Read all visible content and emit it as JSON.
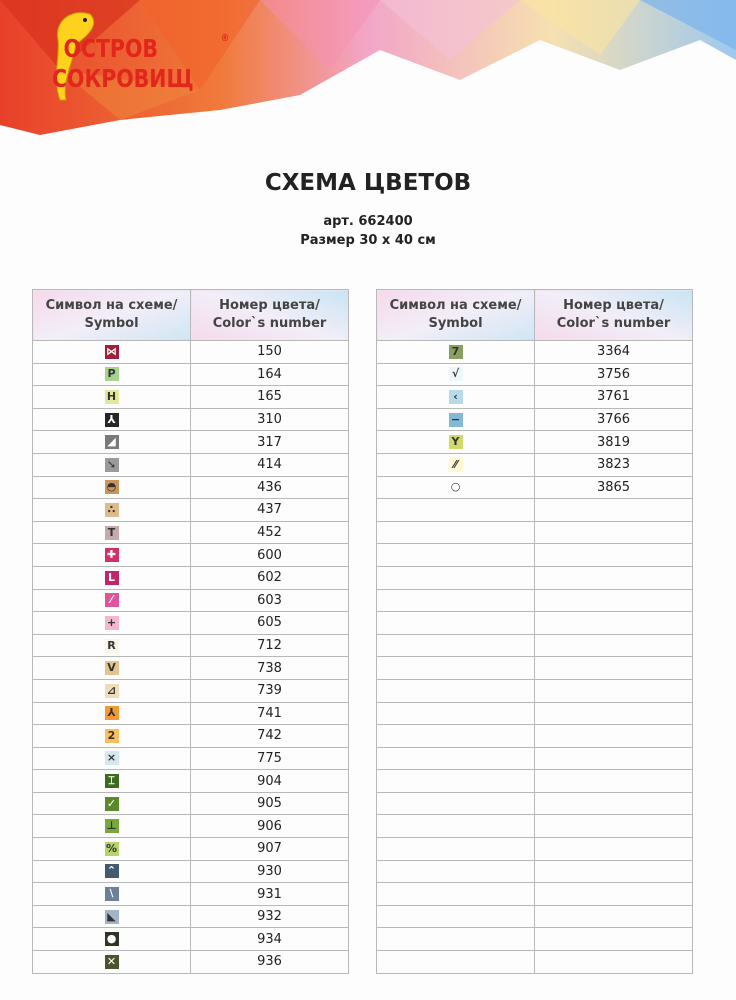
{
  "logo": {
    "line1": "ОСТРОВ",
    "line2": "СОКРОВИЩ",
    "mark": "®"
  },
  "title": "СХЕМА ЦВЕТОВ",
  "article": "арт. 662400",
  "size": "Размер 30 х 40 см",
  "tables": [
    {
      "header": [
        "Символ на схеме/\nSymbol",
        "Номер цвета/\nColor`s number"
      ],
      "rows": [
        {
          "symbol": "⋈",
          "color": "#a0203a",
          "number": "150"
        },
        {
          "symbol": "P",
          "color": "#a6d48e",
          "number": "164"
        },
        {
          "symbol": "H",
          "color": "#e2e79c",
          "number": "165"
        },
        {
          "symbol": "⅄",
          "color": "#262626",
          "number": "310"
        },
        {
          "symbol": "◢",
          "color": "#7a7a7a",
          "number": "317"
        },
        {
          "symbol": "➘",
          "color": "#9a9a9a",
          "number": "414"
        },
        {
          "symbol": "◓",
          "color": "#c8955c",
          "number": "436"
        },
        {
          "symbol": "∴",
          "color": "#dcbb8c",
          "number": "437"
        },
        {
          "symbol": "T",
          "color": "#c3abab",
          "number": "452"
        },
        {
          "symbol": "✚",
          "color": "#d3306a",
          "number": "600"
        },
        {
          "symbol": "L",
          "color": "#c4246a",
          "number": "602"
        },
        {
          "symbol": "⁄",
          "color": "#e0559a",
          "number": "603"
        },
        {
          "symbol": "+",
          "color": "#f4b6d0",
          "number": "605"
        },
        {
          "symbol": "R",
          "color": "#faf5e6",
          "number": "712"
        },
        {
          "symbol": "V",
          "color": "#e2c48f",
          "number": "738"
        },
        {
          "symbol": "⊿",
          "color": "#efdcb8",
          "number": "739"
        },
        {
          "symbol": "⅄",
          "color": "#f39a35",
          "number": "741"
        },
        {
          "symbol": "2",
          "color": "#fbbe5c",
          "number": "742"
        },
        {
          "symbol": "×",
          "color": "#d6e7f0",
          "number": "775"
        },
        {
          "symbol": "⌶",
          "color": "#3c6a1e",
          "number": "904"
        },
        {
          "symbol": "✓",
          "color": "#5a8a2a",
          "number": "905"
        },
        {
          "symbol": "⊥",
          "color": "#78a83a",
          "number": "906"
        },
        {
          "symbol": "%",
          "color": "#b5d46b",
          "number": "907"
        },
        {
          "symbol": "⌃",
          "color": "#45596c",
          "number": "930"
        },
        {
          "symbol": "⧵",
          "color": "#6c8199",
          "number": "931"
        },
        {
          "symbol": "◣",
          "color": "#a2b4c8",
          "number": "932"
        },
        {
          "symbol": "●",
          "color": "#2f3526",
          "number": "934"
        },
        {
          "symbol": "✕",
          "color": "#4a5530",
          "number": "936"
        }
      ]
    },
    {
      "header": [
        "Символ на схеме/\nSymbol",
        "Номер цвета/\nColor`s number"
      ],
      "rows": [
        {
          "symbol": "7",
          "color": "#8aa060",
          "number": "3364"
        },
        {
          "symbol": "√",
          "color": "#eef6fa",
          "number": "3756"
        },
        {
          "symbol": "‹",
          "color": "#b8dbea",
          "number": "3761"
        },
        {
          "symbol": "−",
          "color": "#82bad6",
          "number": "3766"
        },
        {
          "symbol": "Y",
          "color": "#d2d86a",
          "number": "3819"
        },
        {
          "symbol": "⁄⁄",
          "color": "#fff8d2",
          "number": "3823"
        },
        {
          "symbol": "○",
          "color": "#ffffff",
          "number": "3865"
        }
      ]
    }
  ]
}
